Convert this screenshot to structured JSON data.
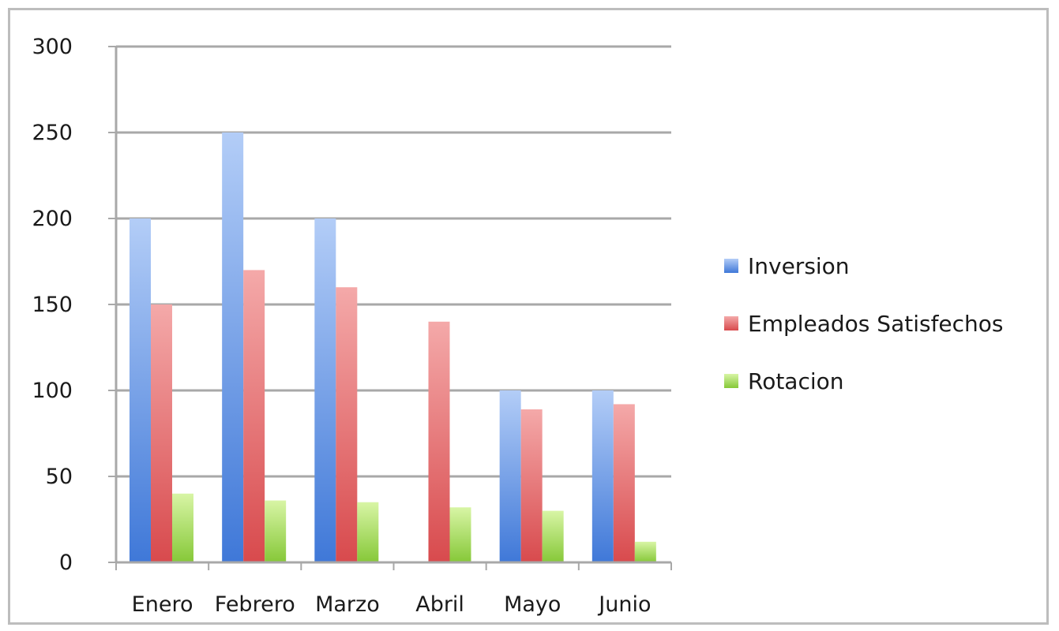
{
  "chart_data": {
    "type": "bar",
    "categories": [
      "Enero",
      "Febrero",
      "Marzo",
      "Abril",
      "Mayo",
      "Junio"
    ],
    "series": [
      {
        "name": "Inversion",
        "values": [
          200,
          250,
          200,
          0,
          100,
          100
        ],
        "color": "#5b8fe0"
      },
      {
        "name": "Empleados Satisfechos",
        "values": [
          150,
          170,
          160,
          140,
          89,
          92
        ],
        "color": "#e0575a"
      },
      {
        "name": "Rotacion",
        "values": [
          40,
          36,
          35,
          32,
          30,
          12
        ],
        "color": "#9bd54a"
      }
    ],
    "yticks": [
      "0",
      "50",
      "100",
      "150",
      "200",
      "250",
      "300"
    ],
    "ylim": [
      0,
      300
    ],
    "grid": true,
    "legend_position": "right"
  }
}
